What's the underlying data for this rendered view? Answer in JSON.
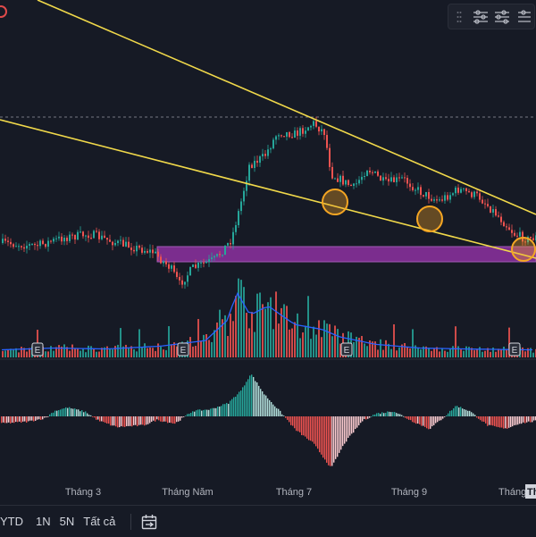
{
  "chart_data": {
    "type": "candlestick",
    "price_panel": {
      "trendlines": [
        {
          "name": "upper-resistance"
        },
        {
          "name": "lower-support"
        }
      ],
      "support_zone": {
        "color": "#7b2d8e"
      },
      "touch_points": 4,
      "dashed_level": true
    },
    "volume_panel": {
      "moving_average": true,
      "earnings_markers": [
        "E",
        "E",
        "E",
        "E"
      ]
    },
    "histogram_panel": {
      "type": "histogram"
    },
    "x_axis": {
      "tick_labels": [
        "Tháng 3",
        "Tháng Năm",
        "Tháng 7",
        "Tháng 9",
        "Tháng",
        "Th"
      ]
    },
    "colors": {
      "up": "#26a69a",
      "down": "#ef5350",
      "trendline": "#f0d84a",
      "ma": "#2962ff",
      "circle": "#f5a623"
    }
  },
  "range_buttons": [
    "YTD",
    "1N",
    "5N",
    "Tất cả"
  ],
  "icons": {
    "toolbar": [
      "indicator-settings-icon",
      "indicator-settings-icon-2",
      "indicator-settings-icon-3"
    ],
    "calendar": "calendar-range-icon"
  }
}
